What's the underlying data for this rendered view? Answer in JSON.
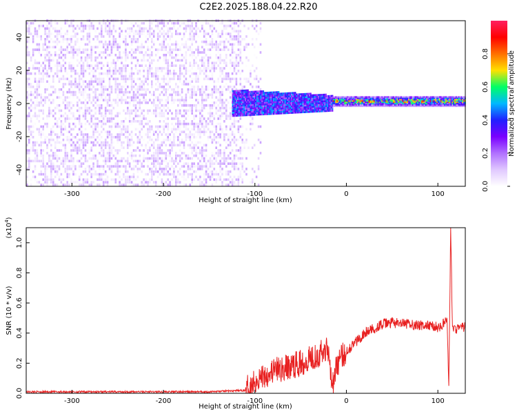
{
  "title": "C2E2.2025.188.04.22.R20",
  "chart_data": [
    {
      "type": "heatmap",
      "title": "C2E2.2025.188.04.22.R20",
      "xlabel": "Height of straight line (km)",
      "ylabel": "Frequency (Hz)",
      "xlim": [
        -350,
        130
      ],
      "ylim": [
        -50,
        50
      ],
      "x_ticks": [
        "-300",
        "-200",
        "-100",
        "0",
        "100"
      ],
      "y_ticks": [
        "-40",
        "-20",
        "0",
        "20",
        "40"
      ],
      "colorbar": {
        "label": "Normalized spectral amplitude",
        "ticks": [
          "0.0",
          "0.2",
          "0.4",
          "0.6",
          "0.8"
        ],
        "range": [
          0,
          1
        ]
      },
      "regions": [
        {
          "x_range": [
            -350,
            -105
          ],
          "description": "broadband noise",
          "amplitude_range": [
            0.0,
            0.15
          ]
        },
        {
          "x_range": [
            -125,
            -15
          ],
          "freq_center": 0,
          "freq_halfwidth": 8,
          "amplitude_range": [
            0.2,
            0.5
          ]
        },
        {
          "x_range": [
            -15,
            130
          ],
          "freq_center": 1,
          "freq_halfwidth": 3,
          "amplitude_range": [
            0.3,
            1.0
          ]
        }
      ],
      "line_color_scale": [
        "#ffffff",
        "#e0c8ff",
        "#b070ff",
        "#7a00ff",
        "#2020ff",
        "#00b8ff",
        "#00ff66",
        "#ffe000",
        "#ff7000",
        "#ff0000",
        "#ff2060"
      ]
    },
    {
      "type": "line",
      "xlabel": "Height of straight line (km)",
      "ylabel": "SNR (10 * v/v)",
      "y_multiplier": "(x10",
      "y_multiplier_exp": "4",
      "y_multiplier_close": ")",
      "xlim": [
        -350,
        130
      ],
      "ylim": [
        0,
        1.1
      ],
      "x_ticks": [
        "-300",
        "-200",
        "-100",
        "0",
        "100"
      ],
      "y_ticks": [
        "0.0",
        "0.2",
        "0.4",
        "0.6",
        "0.8",
        "1.0"
      ],
      "series": [
        {
          "color": "#e82020",
          "x": [
            -350,
            -300,
            -250,
            -200,
            -150,
            -110,
            -100,
            -90,
            -80,
            -70,
            -60,
            -50,
            -40,
            -30,
            -20,
            -15,
            -10,
            0,
            10,
            20,
            30,
            40,
            50,
            60,
            70,
            80,
            90,
            100,
            105,
            110,
            112,
            114,
            116,
            120,
            130
          ],
          "y": [
            0.01,
            0.01,
            0.01,
            0.01,
            0.01,
            0.02,
            0.08,
            0.12,
            0.15,
            0.16,
            0.18,
            0.2,
            0.24,
            0.26,
            0.3,
            0.05,
            0.2,
            0.28,
            0.34,
            0.4,
            0.43,
            0.46,
            0.47,
            0.46,
            0.46,
            0.45,
            0.45,
            0.44,
            0.45,
            0.5,
            0.05,
            1.1,
            0.42,
            0.43,
            0.44
          ]
        }
      ]
    }
  ]
}
